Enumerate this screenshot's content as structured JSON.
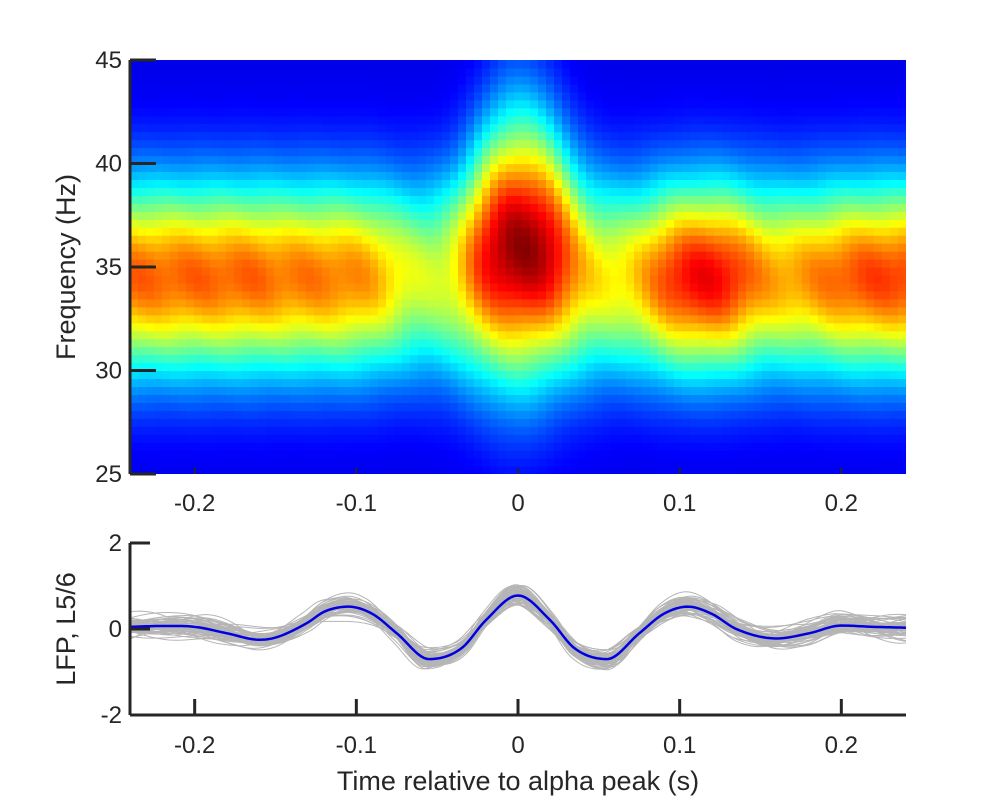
{
  "chart_data": [
    {
      "type": "heatmap",
      "title": "",
      "xlabel": "",
      "ylabel": "Frequency (Hz)",
      "xlim": [
        -0.24,
        0.24
      ],
      "ylim": [
        25,
        45
      ],
      "xticks": [
        -0.2,
        -0.1,
        0,
        0.1,
        0.2
      ],
      "xtick_labels": [
        "-0.2",
        "-0.1",
        "0",
        "0.1",
        "0.2"
      ],
      "yticks": [
        25,
        30,
        35,
        40,
        45
      ],
      "ytick_labels": [
        "25",
        "30",
        "35",
        "40",
        "45"
      ],
      "colormap": "jet",
      "grid": false,
      "power_peaks": [
        {
          "t": -0.21,
          "f": 34.5,
          "level": 0.78
        },
        {
          "t": -0.1,
          "f": 34.5,
          "level": 0.76
        },
        {
          "t": 0.0,
          "f": 36.0,
          "level": 1.0
        },
        {
          "t": 0.11,
          "f": 34.5,
          "level": 0.9
        },
        {
          "t": 0.21,
          "f": 34.5,
          "level": 0.82
        }
      ],
      "power_troughs": [
        {
          "t": -0.055,
          "f": 34.5,
          "level": 0.55
        },
        {
          "t": 0.06,
          "f": 34.5,
          "level": 0.62
        },
        {
          "t": 0.17,
          "f": 34.5,
          "level": 0.7
        }
      ],
      "power_edge_level": 0.1
    },
    {
      "type": "line",
      "title": "",
      "xlabel": "Time relative to alpha peak (s)",
      "ylabel": "LFP, L5/6",
      "xlim": [
        -0.24,
        0.24
      ],
      "ylim": [
        -2,
        2
      ],
      "xticks": [
        -0.2,
        -0.1,
        0,
        0.1,
        0.2
      ],
      "xtick_labels": [
        "-0.2",
        "-0.1",
        "0",
        "0.1",
        "0.2"
      ],
      "yticks": [
        -2,
        0,
        2
      ],
      "ytick_labels": [
        "-2",
        "0",
        "2"
      ],
      "grid": false,
      "series": [
        {
          "role": "mean",
          "color": "#0000e0",
          "x": [
            -0.24,
            -0.22,
            -0.2,
            -0.18,
            -0.16,
            -0.15,
            -0.13,
            -0.12,
            -0.105,
            -0.09,
            -0.075,
            -0.055,
            -0.035,
            -0.02,
            0,
            0.02,
            0.035,
            0.055,
            0.075,
            0.09,
            0.105,
            0.12,
            0.135,
            0.16,
            0.18,
            0.2,
            0.22,
            0.24
          ],
          "y": [
            0.05,
            0.07,
            0.05,
            -0.1,
            -0.25,
            -0.2,
            0.15,
            0.4,
            0.52,
            0.35,
            -0.1,
            -0.7,
            -0.45,
            0.2,
            0.78,
            0.2,
            -0.45,
            -0.7,
            -0.1,
            0.35,
            0.52,
            0.35,
            0.0,
            -0.22,
            -0.1,
            0.08,
            0.05,
            0.03
          ]
        },
        {
          "role": "individual_traces",
          "color": "#b5b5b5",
          "count": 60
        }
      ]
    }
  ],
  "colors": {
    "axis": "#262626",
    "mean_trace": "#0000e0",
    "individual_trace": "#b5b5b5"
  }
}
